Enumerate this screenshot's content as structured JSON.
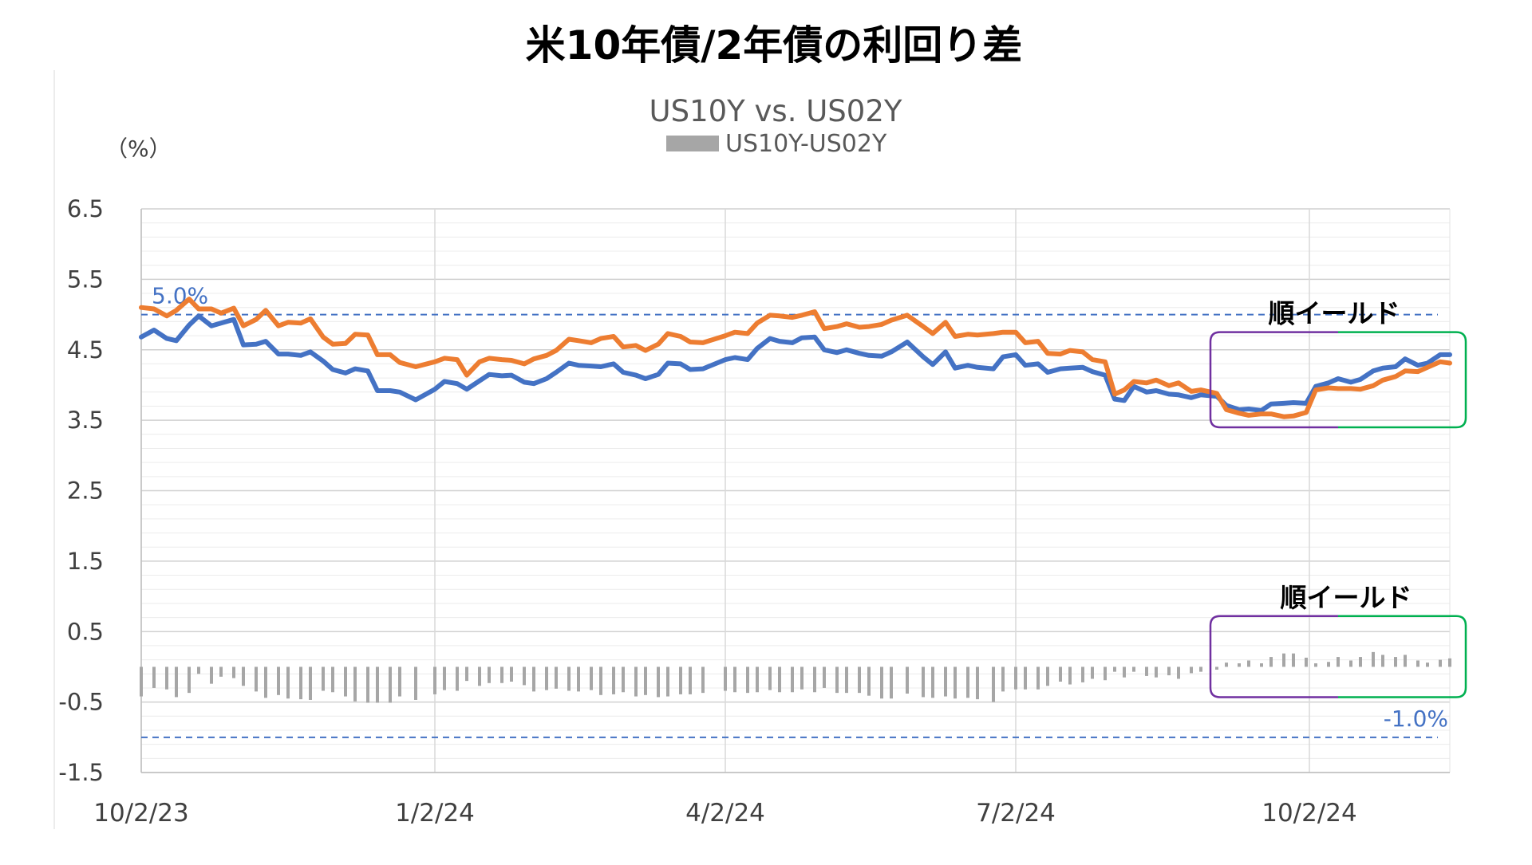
{
  "title": "米10年債/2年債の利回り差",
  "chart_data": {
    "type": "line",
    "title": "US10Y vs. US02Y",
    "unit_label": "（%）",
    "ylim": [
      -1.5,
      6.5
    ],
    "y_ticks": [
      "6.5",
      "5.5",
      "4.5",
      "3.5",
      "2.5",
      "1.5",
      "0.5",
      "-0.5",
      "-1.5"
    ],
    "x_start": "2023-10-02",
    "x_end": "2024-11-15",
    "x_ticks": [
      "10/2/23",
      "1/2/24",
      "4/2/24",
      "7/2/24",
      "10/2/24"
    ],
    "x_tick_dates": [
      "2023-10-02",
      "2024-01-02",
      "2024-04-02",
      "2024-07-02",
      "2024-10-02"
    ],
    "grid": true,
    "legend": "top-center",
    "series": [
      {
        "key": "us10y",
        "color": "#4472c4",
        "style": "line",
        "x": [
          "2023-10-02",
          "2023-10-06",
          "2023-10-10",
          "2023-10-13",
          "2023-10-17",
          "2023-10-20",
          "2023-10-24",
          "2023-10-27",
          "2023-10-31",
          "2023-11-03",
          "2023-11-07",
          "2023-11-10",
          "2023-11-14",
          "2023-11-17",
          "2023-11-21",
          "2023-11-24",
          "2023-11-28",
          "2023-12-01",
          "2023-12-05",
          "2023-12-08",
          "2023-12-12",
          "2023-12-15",
          "2023-12-19",
          "2023-12-22",
          "2023-12-27",
          "2024-01-02",
          "2024-01-05",
          "2024-01-09",
          "2024-01-12",
          "2024-01-16",
          "2024-01-19",
          "2024-01-23",
          "2024-01-26",
          "2024-01-30",
          "2024-02-02",
          "2024-02-06",
          "2024-02-09",
          "2024-02-13",
          "2024-02-16",
          "2024-02-20",
          "2024-02-23",
          "2024-02-27",
          "2024-03-01",
          "2024-03-05",
          "2024-03-08",
          "2024-03-12",
          "2024-03-15",
          "2024-03-19",
          "2024-03-22",
          "2024-03-26",
          "2024-04-02",
          "2024-04-05",
          "2024-04-09",
          "2024-04-12",
          "2024-04-16",
          "2024-04-19",
          "2024-04-23",
          "2024-04-26",
          "2024-04-30",
          "2024-05-03",
          "2024-05-07",
          "2024-05-10",
          "2024-05-14",
          "2024-05-17",
          "2024-05-21",
          "2024-05-24",
          "2024-05-29",
          "2024-06-03",
          "2024-06-06",
          "2024-06-10",
          "2024-06-13",
          "2024-06-17",
          "2024-06-20",
          "2024-06-25",
          "2024-06-28",
          "2024-07-02",
          "2024-07-05",
          "2024-07-09",
          "2024-07-12",
          "2024-07-16",
          "2024-07-19",
          "2024-07-23",
          "2024-07-26",
          "2024-07-30",
          "2024-08-02",
          "2024-08-05",
          "2024-08-08",
          "2024-08-12",
          "2024-08-15",
          "2024-08-19",
          "2024-08-22",
          "2024-08-26",
          "2024-08-29",
          "2024-09-03",
          "2024-09-06",
          "2024-09-10",
          "2024-09-13",
          "2024-09-17",
          "2024-09-20",
          "2024-09-24",
          "2024-09-27",
          "2024-10-01",
          "2024-10-04",
          "2024-10-08",
          "2024-10-11",
          "2024-10-15",
          "2024-10-18",
          "2024-10-22",
          "2024-10-25",
          "2024-10-29",
          "2024-11-01",
          "2024-11-05",
          "2024-11-08",
          "2024-11-12",
          "2024-11-15"
        ],
        "values": [
          4.68,
          4.78,
          4.66,
          4.63,
          4.85,
          4.98,
          4.84,
          4.88,
          4.93,
          4.57,
          4.58,
          4.62,
          4.44,
          4.44,
          4.42,
          4.47,
          4.34,
          4.22,
          4.17,
          4.23,
          4.2,
          3.92,
          3.92,
          3.9,
          3.79,
          3.94,
          4.05,
          4.02,
          3.94,
          4.06,
          4.15,
          4.13,
          4.14,
          4.04,
          4.02,
          4.09,
          4.18,
          4.31,
          4.28,
          4.27,
          4.26,
          4.3,
          4.18,
          4.14,
          4.09,
          4.15,
          4.31,
          4.3,
          4.22,
          4.23,
          4.36,
          4.39,
          4.36,
          4.52,
          4.66,
          4.62,
          4.6,
          4.67,
          4.68,
          4.5,
          4.46,
          4.5,
          4.45,
          4.42,
          4.41,
          4.47,
          4.61,
          4.4,
          4.29,
          4.47,
          4.24,
          4.28,
          4.25,
          4.23,
          4.4,
          4.43,
          4.28,
          4.3,
          4.18,
          4.23,
          4.24,
          4.25,
          4.19,
          4.14,
          3.8,
          3.78,
          3.98,
          3.9,
          3.92,
          3.87,
          3.86,
          3.82,
          3.86,
          3.84,
          3.71,
          3.65,
          3.66,
          3.64,
          3.73,
          3.74,
          3.75,
          3.74,
          3.98,
          4.03,
          4.09,
          4.04,
          4.08,
          4.2,
          4.24,
          4.26,
          4.37,
          4.28,
          4.31,
          4.43,
          4.43
        ]
      },
      {
        "key": "us02y",
        "color": "#ed7d31",
        "style": "line",
        "x": [
          "2023-10-02",
          "2023-10-06",
          "2023-10-10",
          "2023-10-13",
          "2023-10-17",
          "2023-10-20",
          "2023-10-24",
          "2023-10-27",
          "2023-10-31",
          "2023-11-03",
          "2023-11-07",
          "2023-11-10",
          "2023-11-14",
          "2023-11-17",
          "2023-11-21",
          "2023-11-24",
          "2023-11-28",
          "2023-12-01",
          "2023-12-05",
          "2023-12-08",
          "2023-12-12",
          "2023-12-15",
          "2023-12-19",
          "2023-12-22",
          "2023-12-27",
          "2024-01-02",
          "2024-01-05",
          "2024-01-09",
          "2024-01-12",
          "2024-01-16",
          "2024-01-19",
          "2024-01-23",
          "2024-01-26",
          "2024-01-30",
          "2024-02-02",
          "2024-02-06",
          "2024-02-09",
          "2024-02-13",
          "2024-02-16",
          "2024-02-20",
          "2024-02-23",
          "2024-02-27",
          "2024-03-01",
          "2024-03-05",
          "2024-03-08",
          "2024-03-12",
          "2024-03-15",
          "2024-03-19",
          "2024-03-22",
          "2024-03-26",
          "2024-04-02",
          "2024-04-05",
          "2024-04-09",
          "2024-04-12",
          "2024-04-16",
          "2024-04-19",
          "2024-04-23",
          "2024-04-26",
          "2024-04-30",
          "2024-05-03",
          "2024-05-07",
          "2024-05-10",
          "2024-05-14",
          "2024-05-17",
          "2024-05-21",
          "2024-05-24",
          "2024-05-29",
          "2024-06-03",
          "2024-06-06",
          "2024-06-10",
          "2024-06-13",
          "2024-06-17",
          "2024-06-20",
          "2024-06-25",
          "2024-06-28",
          "2024-07-02",
          "2024-07-05",
          "2024-07-09",
          "2024-07-12",
          "2024-07-16",
          "2024-07-19",
          "2024-07-23",
          "2024-07-26",
          "2024-07-30",
          "2024-08-02",
          "2024-08-05",
          "2024-08-08",
          "2024-08-12",
          "2024-08-15",
          "2024-08-19",
          "2024-08-22",
          "2024-08-26",
          "2024-08-29",
          "2024-09-03",
          "2024-09-06",
          "2024-09-10",
          "2024-09-13",
          "2024-09-17",
          "2024-09-20",
          "2024-09-24",
          "2024-09-27",
          "2024-10-01",
          "2024-10-04",
          "2024-10-08",
          "2024-10-11",
          "2024-10-15",
          "2024-10-18",
          "2024-10-22",
          "2024-10-25",
          "2024-10-29",
          "2024-11-01",
          "2024-11-05",
          "2024-11-08",
          "2024-11-12",
          "2024-11-15"
        ],
        "values": [
          5.1,
          5.08,
          4.98,
          5.06,
          5.22,
          5.08,
          5.08,
          5.02,
          5.09,
          4.84,
          4.93,
          5.06,
          4.84,
          4.89,
          4.88,
          4.94,
          4.68,
          4.58,
          4.59,
          4.72,
          4.71,
          4.43,
          4.43,
          4.32,
          4.26,
          4.33,
          4.38,
          4.36,
          4.14,
          4.33,
          4.38,
          4.36,
          4.35,
          4.3,
          4.37,
          4.42,
          4.49,
          4.65,
          4.63,
          4.6,
          4.66,
          4.69,
          4.54,
          4.56,
          4.49,
          4.58,
          4.73,
          4.69,
          4.61,
          4.6,
          4.7,
          4.75,
          4.73,
          4.88,
          4.99,
          4.98,
          4.96,
          4.99,
          5.04,
          4.8,
          4.83,
          4.87,
          4.82,
          4.83,
          4.86,
          4.92,
          4.99,
          4.83,
          4.73,
          4.89,
          4.69,
          4.72,
          4.71,
          4.73,
          4.75,
          4.75,
          4.6,
          4.62,
          4.45,
          4.44,
          4.49,
          4.47,
          4.36,
          4.33,
          3.87,
          3.93,
          4.05,
          4.03,
          4.07,
          3.99,
          4.03,
          3.91,
          3.93,
          3.88,
          3.65,
          3.6,
          3.57,
          3.59,
          3.59,
          3.55,
          3.56,
          3.61,
          3.93,
          3.96,
          3.95,
          3.95,
          3.94,
          3.99,
          4.07,
          4.12,
          4.2,
          4.19,
          4.25,
          4.33,
          4.31
        ]
      },
      {
        "key": "spread",
        "name": "US10Y-US02Y",
        "color": "#a6a6a6",
        "style": "bar",
        "x": [
          "2023-10-02",
          "2023-10-06",
          "2023-10-10",
          "2023-10-13",
          "2023-10-17",
          "2023-10-20",
          "2023-10-24",
          "2023-10-27",
          "2023-10-31",
          "2023-11-03",
          "2023-11-07",
          "2023-11-10",
          "2023-11-14",
          "2023-11-17",
          "2023-11-21",
          "2023-11-24",
          "2023-11-28",
          "2023-12-01",
          "2023-12-05",
          "2023-12-08",
          "2023-12-12",
          "2023-12-15",
          "2023-12-19",
          "2023-12-22",
          "2023-12-27",
          "2024-01-02",
          "2024-01-05",
          "2024-01-09",
          "2024-01-12",
          "2024-01-16",
          "2024-01-19",
          "2024-01-23",
          "2024-01-26",
          "2024-01-30",
          "2024-02-02",
          "2024-02-06",
          "2024-02-09",
          "2024-02-13",
          "2024-02-16",
          "2024-02-20",
          "2024-02-23",
          "2024-02-27",
          "2024-03-01",
          "2024-03-05",
          "2024-03-08",
          "2024-03-12",
          "2024-03-15",
          "2024-03-19",
          "2024-03-22",
          "2024-03-26",
          "2024-04-02",
          "2024-04-05",
          "2024-04-09",
          "2024-04-12",
          "2024-04-16",
          "2024-04-19",
          "2024-04-23",
          "2024-04-26",
          "2024-04-30",
          "2024-05-03",
          "2024-05-07",
          "2024-05-10",
          "2024-05-14",
          "2024-05-17",
          "2024-05-21",
          "2024-05-24",
          "2024-05-29",
          "2024-06-03",
          "2024-06-06",
          "2024-06-10",
          "2024-06-13",
          "2024-06-17",
          "2024-06-20",
          "2024-06-25",
          "2024-06-28",
          "2024-07-02",
          "2024-07-05",
          "2024-07-09",
          "2024-07-12",
          "2024-07-16",
          "2024-07-19",
          "2024-07-23",
          "2024-07-26",
          "2024-07-30",
          "2024-08-02",
          "2024-08-05",
          "2024-08-08",
          "2024-08-12",
          "2024-08-15",
          "2024-08-19",
          "2024-08-22",
          "2024-08-26",
          "2024-08-29",
          "2024-09-03",
          "2024-09-06",
          "2024-09-10",
          "2024-09-13",
          "2024-09-17",
          "2024-09-20",
          "2024-09-24",
          "2024-09-27",
          "2024-10-01",
          "2024-10-04",
          "2024-10-08",
          "2024-10-11",
          "2024-10-15",
          "2024-10-18",
          "2024-10-22",
          "2024-10-25",
          "2024-10-29",
          "2024-11-01",
          "2024-11-05",
          "2024-11-08",
          "2024-11-12",
          "2024-11-15"
        ],
        "values": [
          -0.42,
          -0.3,
          -0.32,
          -0.43,
          -0.37,
          -0.1,
          -0.24,
          -0.14,
          -0.16,
          -0.27,
          -0.35,
          -0.44,
          -0.4,
          -0.45,
          -0.46,
          -0.47,
          -0.34,
          -0.36,
          -0.42,
          -0.49,
          -0.51,
          -0.51,
          -0.51,
          -0.42,
          -0.47,
          -0.39,
          -0.33,
          -0.34,
          -0.2,
          -0.27,
          -0.23,
          -0.23,
          -0.21,
          -0.26,
          -0.35,
          -0.33,
          -0.31,
          -0.34,
          -0.35,
          -0.33,
          -0.4,
          -0.39,
          -0.36,
          -0.42,
          -0.4,
          -0.43,
          -0.42,
          -0.39,
          -0.39,
          -0.37,
          -0.34,
          -0.36,
          -0.37,
          -0.36,
          -0.33,
          -0.36,
          -0.36,
          -0.32,
          -0.36,
          -0.3,
          -0.37,
          -0.37,
          -0.37,
          -0.41,
          -0.45,
          -0.45,
          -0.38,
          -0.43,
          -0.44,
          -0.42,
          -0.45,
          -0.44,
          -0.46,
          -0.5,
          -0.35,
          -0.32,
          -0.32,
          -0.32,
          -0.27,
          -0.21,
          -0.25,
          -0.22,
          -0.17,
          -0.19,
          -0.07,
          -0.15,
          -0.07,
          -0.13,
          -0.15,
          -0.12,
          -0.17,
          -0.09,
          -0.07,
          -0.04,
          0.06,
          0.05,
          0.09,
          0.05,
          0.14,
          0.19,
          0.19,
          0.13,
          0.05,
          0.07,
          0.14,
          0.09,
          0.14,
          0.21,
          0.17,
          0.14,
          0.17,
          0.09,
          0.06,
          0.1,
          0.12
        ]
      }
    ],
    "reference_lines": [
      {
        "key": "upper",
        "value": 5.0,
        "label": "5.0%",
        "color": "#4472c4"
      },
      {
        "key": "lower",
        "value": -1.0,
        "label": "-1.0%",
        "color": "#4472c4"
      }
    ],
    "callouts": [
      {
        "key": "upper",
        "label": "順イールド",
        "x_from": "2024-09-01",
        "x_to": "2024-11-20",
        "y_from": 3.4,
        "y_to": 4.75
      },
      {
        "key": "lower",
        "label": "順イールド",
        "x_from": "2024-09-01",
        "x_to": "2024-11-20",
        "y_from": -0.43,
        "y_to": 0.72
      }
    ],
    "callout_colors": [
      "#7030a0",
      "#00b050"
    ]
  }
}
